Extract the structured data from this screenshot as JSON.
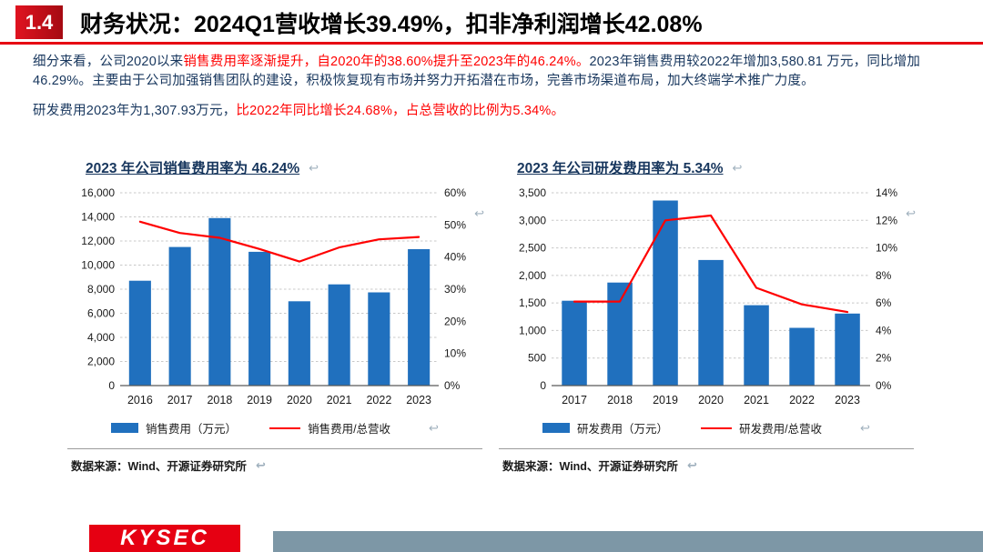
{
  "colors": {
    "accent_red": "#E60012",
    "text_navy": "#17365D",
    "highlight_red": "#FF0000",
    "bar_blue": "#2070BE",
    "line_red": "#FF0000",
    "footer_bar_blue_gray": "#7D97A6"
  },
  "header": {
    "section_number": "1.4",
    "title": "财务状况：2024Q1营收增长39.49%，扣非净利润增长42.08%"
  },
  "paragraphs": [
    {
      "segments": [
        {
          "text": "细分来看，公司2020以来",
          "color": "navy"
        },
        {
          "text": "销售费用率逐渐提升，自2020年的38.60%提升至2023年的46.24%。",
          "color": "red"
        },
        {
          "text": "2023年销售费用较2022年增加3,580.81 万元，同比增加46.29%。主要由于公司加强销售团队的建设，积极恢复现有市场并努力开拓潜在市场，完善市场渠道布局，加大终端学术推广力度。",
          "color": "navy"
        }
      ]
    },
    {
      "segments": [
        {
          "text": "研发费用2023年为1,307.93万元，",
          "color": "navy"
        },
        {
          "text": "比2022年同比增长24.68%，占总营收的比例为5.34%。",
          "color": "red"
        }
      ]
    }
  ],
  "icons": {
    "return_mark": "↩"
  },
  "chart_data": [
    {
      "type": "bar",
      "title": "2023 年公司销售费用率为 46.24%",
      "categories": [
        "2016",
        "2017",
        "2018",
        "2019",
        "2020",
        "2021",
        "2022",
        "2023"
      ],
      "bar_series": {
        "name": "销售费用（万元）",
        "values": [
          8700,
          11500,
          13900,
          11100,
          7000,
          8400,
          7736,
          11317
        ]
      },
      "line_series": {
        "name": "销售费用/总营收",
        "values": [
          51.0,
          47.5,
          46.0,
          42.5,
          38.6,
          43.0,
          45.5,
          46.24
        ]
      },
      "left_axis": {
        "min": 0,
        "max": 16000,
        "step": 2000
      },
      "right_axis": {
        "min": 0,
        "max": 60,
        "step": 10,
        "suffix": "%"
      },
      "grid": true,
      "legend_position": "bottom",
      "source": "数据来源：Wind、开源证券研究所"
    },
    {
      "type": "bar",
      "title": "2023 年公司研发费用率为 5.34%",
      "categories": [
        "2017",
        "2018",
        "2019",
        "2020",
        "2021",
        "2022",
        "2023"
      ],
      "bar_series": {
        "name": "研发费用（万元）",
        "values": [
          1540,
          1870,
          3360,
          2280,
          1460,
          1049,
          1308
        ]
      },
      "line_series": {
        "name": "研发费用/总营收",
        "values": [
          6.1,
          6.1,
          12.0,
          12.35,
          7.1,
          5.9,
          5.34
        ]
      },
      "left_axis": {
        "min": 0,
        "max": 3500,
        "step": 500
      },
      "right_axis": {
        "min": 0,
        "max": 14,
        "step": 2,
        "suffix": "%"
      },
      "grid": true,
      "legend_position": "bottom",
      "source": "数据来源：Wind、开源证券研究所"
    }
  ],
  "footer": {
    "logo_text": "KYSEC"
  }
}
